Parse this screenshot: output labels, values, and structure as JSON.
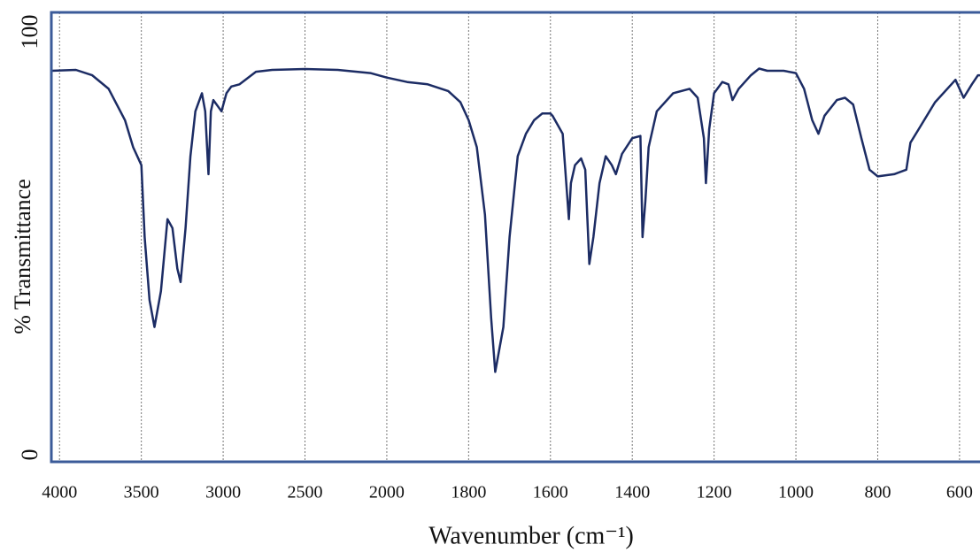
{
  "chart_data": {
    "type": "line",
    "xlabel": "Wavenumber (cm⁻¹)",
    "ylabel": "% Transmittance",
    "xlim": [
      4050,
      550
    ],
    "xticks": [
      4000,
      3500,
      3000,
      2500,
      2000,
      1800,
      1600,
      1400,
      1200,
      1000,
      800,
      600
    ],
    "ylim": [
      0,
      100
    ],
    "yticks": [
      0,
      100
    ],
    "grid": true,
    "series": [
      {
        "name": "Transmittance",
        "color": "#1c2c64",
        "x": [
          4050,
          3900,
          3800,
          3700,
          3600,
          3550,
          3500,
          3480,
          3450,
          3420,
          3380,
          3340,
          3310,
          3280,
          3260,
          3230,
          3200,
          3170,
          3130,
          3110,
          3090,
          3075,
          3060,
          3030,
          3010,
          2980,
          2950,
          2900,
          2800,
          2700,
          2500,
          2300,
          2100,
          2000,
          1950,
          1900,
          1850,
          1820,
          1800,
          1780,
          1760,
          1745,
          1735,
          1725,
          1715,
          1700,
          1680,
          1660,
          1640,
          1620,
          1600,
          1595,
          1570,
          1555,
          1550,
          1540,
          1525,
          1515,
          1505,
          1495,
          1480,
          1465,
          1450,
          1440,
          1425,
          1400,
          1380,
          1375,
          1368,
          1360,
          1340,
          1300,
          1260,
          1240,
          1225,
          1220,
          1212,
          1200,
          1180,
          1165,
          1155,
          1140,
          1110,
          1090,
          1070,
          1030,
          1000,
          980,
          960,
          945,
          930,
          900,
          880,
          860,
          840,
          820,
          800,
          760,
          730,
          720,
          700,
          660,
          620,
          610,
          600,
          590,
          570,
          555,
          550
        ],
        "values": [
          87,
          87.2,
          86,
          83,
          76,
          70,
          66,
          50,
          36,
          30,
          38,
          54,
          52,
          43,
          40,
          52,
          68,
          78,
          82,
          78,
          64,
          78,
          80.5,
          79,
          78,
          82,
          83.5,
          84,
          86.8,
          87.2,
          87.4,
          87.2,
          86.5,
          85.5,
          84.5,
          84,
          82.5,
          80,
          76,
          70,
          55,
          32,
          20,
          25,
          30,
          50,
          68,
          73,
          76,
          77.5,
          77.5,
          77,
          73,
          54,
          62,
          66,
          67.5,
          65,
          44,
          50,
          62,
          68,
          66,
          64,
          68.5,
          72,
          72.5,
          50,
          58,
          70,
          78,
          82,
          83,
          81,
          72,
          62,
          74,
          82,
          84.5,
          84,
          80.5,
          83,
          86,
          87.5,
          87,
          87,
          86.5,
          83,
          76,
          73,
          77,
          80.5,
          81,
          79.5,
          72,
          65,
          63.5,
          64,
          65,
          71,
          74,
          80,
          84,
          85,
          83,
          81,
          84,
          86,
          86
        ]
      }
    ]
  }
}
